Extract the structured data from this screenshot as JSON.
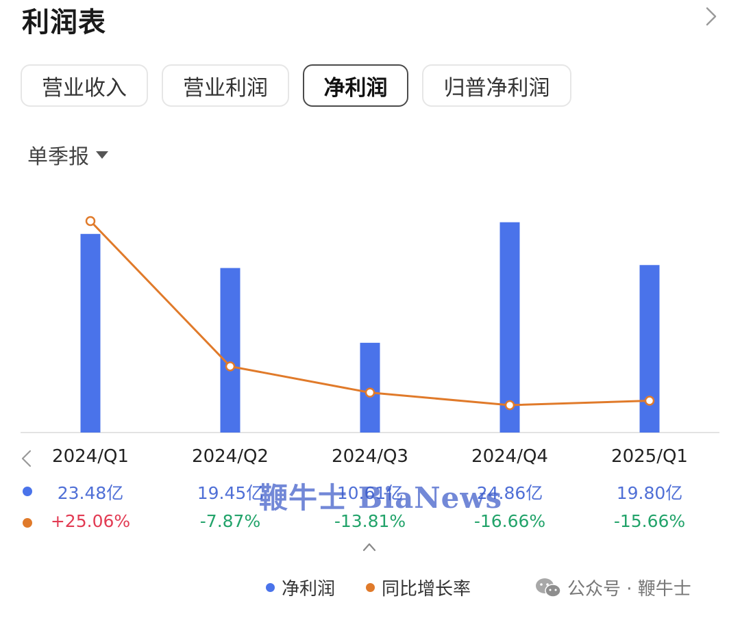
{
  "header": {
    "title": "利润表"
  },
  "tabs": [
    {
      "label": "营业收入",
      "active": false
    },
    {
      "label": "营业利润",
      "active": false
    },
    {
      "label": "净利润",
      "active": true
    },
    {
      "label": "归普净利润",
      "active": false
    }
  ],
  "period_selector": {
    "label": "单季报"
  },
  "colors": {
    "bar": "#4a73ea",
    "line": "#e07a2a",
    "positive": "#e23b53",
    "negative": "#22a36a",
    "value_text": "#4f6fd6"
  },
  "chart_data": {
    "type": "bar",
    "categories": [
      "2024/Q1",
      "2024/Q2",
      "2024/Q3",
      "2024/Q4",
      "2025/Q1"
    ],
    "series": [
      {
        "name": "净利润",
        "type": "bar",
        "unit": "亿",
        "values": [
          23.48,
          19.45,
          10.61,
          24.86,
          19.8
        ],
        "display": [
          "23.48亿",
          "19.45亿",
          "10.61亿",
          "24.86亿",
          "19.80亿"
        ]
      },
      {
        "name": "同比增长率",
        "type": "line",
        "unit": "%",
        "values": [
          25.06,
          -7.87,
          -13.81,
          -16.66,
          -15.66
        ],
        "display": [
          "+25.06%",
          "-7.87%",
          "-13.81%",
          "-16.66%",
          "-15.66%"
        ]
      }
    ],
    "legend": [
      "净利润",
      "同比增长率"
    ]
  },
  "watermark": {
    "source": "公众号 · 鞭牛士",
    "overlay": "鞭牛士 BiaNews"
  },
  "icons": {
    "header_more": "chevron-right-icon",
    "prev": "chevron-left-icon",
    "collapse": "chevron-up-icon",
    "wechat": "wechat-icon",
    "period_caret": "caret-down-icon"
  }
}
